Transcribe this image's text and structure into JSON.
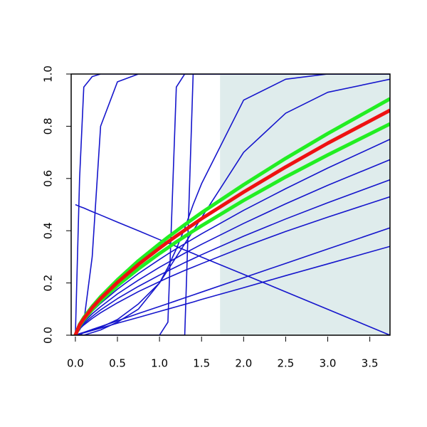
{
  "chart_data": {
    "type": "line",
    "x": [
      0,
      0.05,
      0.1,
      0.2,
      0.3,
      0.5,
      0.75,
      1,
      1.1,
      1.2,
      1.3,
      1.4,
      1.5,
      2,
      2.5,
      3,
      3.74
    ],
    "xlim": [
      -0.05,
      3.74
    ],
    "ylim": [
      0,
      1
    ],
    "xticks": [
      {
        "value": 0,
        "label": "0.0"
      },
      0.5,
      {
        "value": 1,
        "label": "1.0"
      },
      1.5,
      {
        "value": 2,
        "label": "2.0"
      },
      2.5,
      {
        "value": 3,
        "label": "3.0"
      },
      3.5
    ],
    "yticks": [
      {
        "value": 0,
        "label": "0.0"
      },
      0.2,
      0.4,
      0.6,
      0.8,
      {
        "value": 1,
        "label": "1.0"
      }
    ],
    "shade": {
      "x": [
        1.72,
        3.74
      ],
      "color": "#dfecec"
    },
    "series": [
      {
        "color": "#1515cc",
        "line_width": 1.6,
        "values": [
          0,
          0.034,
          0.055,
          0.091,
          0.122,
          0.176,
          0.236,
          0.29,
          0.311,
          0.331,
          0.35,
          0.369,
          0.388,
          0.478,
          0.561,
          0.64,
          0.75
        ]
      },
      {
        "color": "#1515cc",
        "line_width": 1.6,
        "values": [
          0,
          0.03,
          0.049,
          0.082,
          0.109,
          0.158,
          0.211,
          0.26,
          0.278,
          0.296,
          0.314,
          0.331,
          0.348,
          0.428,
          0.503,
          0.574,
          0.672
        ]
      },
      {
        "color": "#1515cc",
        "line_width": 1.6,
        "values": [
          0,
          0.027,
          0.044,
          0.072,
          0.097,
          0.14,
          0.187,
          0.23,
          0.246,
          0.262,
          0.278,
          0.293,
          0.308,
          0.379,
          0.445,
          0.507,
          0.595
        ]
      },
      {
        "color": "#1515cc",
        "line_width": 1.6,
        "values": [
          0,
          0.024,
          0.039,
          0.064,
          0.086,
          0.124,
          0.167,
          0.205,
          0.22,
          0.234,
          0.248,
          0.261,
          0.274,
          0.338,
          0.397,
          0.452,
          0.53
        ]
      },
      {
        "color": "#1515cc",
        "line_width": 1.6,
        "values": [
          0,
          0.006,
          0.011,
          0.022,
          0.033,
          0.055,
          0.083,
          0.11,
          0.121,
          0.132,
          0.143,
          0.154,
          0.165,
          0.22,
          0.275,
          0.33,
          0.411
        ]
      },
      {
        "color": "#1515cc",
        "line_width": 1.6,
        "values": [
          0,
          0.005,
          0.009,
          0.018,
          0.027,
          0.046,
          0.068,
          0.091,
          0.1,
          0.109,
          0.118,
          0.127,
          0.137,
          0.182,
          0.228,
          0.273,
          0.34
        ]
      },
      {
        "color": "#1515cc",
        "line_width": 1.6,
        "values": [
          0.5,
          0.493,
          0.487,
          0.473,
          0.46,
          0.433,
          0.4,
          0.366,
          0.353,
          0.34,
          0.326,
          0.313,
          0.299,
          0.233,
          0.166,
          0.099,
          0
        ]
      },
      {
        "color": "#1515cc",
        "line_width": 1.6,
        "values": [
          0,
          0.6,
          0.95,
          0.99,
          1,
          1,
          1,
          1,
          1,
          1,
          1,
          1,
          1,
          1,
          1,
          1,
          1
        ]
      },
      {
        "color": "#1515cc",
        "line_width": 1.6,
        "values": [
          0,
          0.02,
          0.05,
          0.3,
          0.8,
          0.97,
          1,
          1,
          1,
          1,
          1,
          1,
          1,
          1,
          1,
          1,
          1
        ]
      },
      {
        "color": "#1515cc",
        "line_width": 1.6,
        "values": [
          0,
          0,
          0,
          0,
          0,
          0,
          0,
          0,
          0.05,
          0.95,
          1,
          1,
          1,
          1,
          1,
          1,
          1
        ]
      },
      {
        "color": "#1515cc",
        "line_width": 1.6,
        "values": [
          0,
          0,
          0,
          0,
          0,
          0,
          0,
          0,
          0,
          0,
          0,
          1,
          1,
          1,
          1,
          1,
          1
        ]
      },
      {
        "color": "#1515cc",
        "line_width": 1.6,
        "values": [
          0,
          0,
          0,
          0.01,
          0.02,
          0.05,
          0.1,
          0.2,
          0.26,
          0.33,
          0.41,
          0.5,
          0.58,
          0.9,
          0.98,
          1,
          1
        ]
      },
      {
        "color": "#1515cc",
        "line_width": 1.6,
        "values": [
          0,
          0,
          0.01,
          0.02,
          0.03,
          0.06,
          0.12,
          0.2,
          0.25,
          0.3,
          0.35,
          0.4,
          0.45,
          0.7,
          0.85,
          0.93,
          0.98
        ]
      },
      {
        "color": "#22ee22",
        "line_width": 5,
        "values": [
          0,
          0.041,
          0.067,
          0.11,
          0.147,
          0.212,
          0.285,
          0.35,
          0.375,
          0.399,
          0.423,
          0.446,
          0.469,
          0.576,
          0.677,
          0.772,
          0.905
        ]
      },
      {
        "color": "#22ee22",
        "line_width": 5,
        "values": [
          0,
          0.036,
          0.059,
          0.098,
          0.131,
          0.19,
          0.254,
          0.313,
          0.335,
          0.357,
          0.378,
          0.399,
          0.419,
          0.516,
          0.606,
          0.69,
          0.809
        ]
      },
      {
        "color": "#ee1111",
        "line_width": 5,
        "values": [
          0,
          0.039,
          0.063,
          0.105,
          0.14,
          0.202,
          0.271,
          0.333,
          0.357,
          0.38,
          0.402,
          0.424,
          0.446,
          0.548,
          0.644,
          0.735,
          0.861
        ]
      }
    ]
  }
}
